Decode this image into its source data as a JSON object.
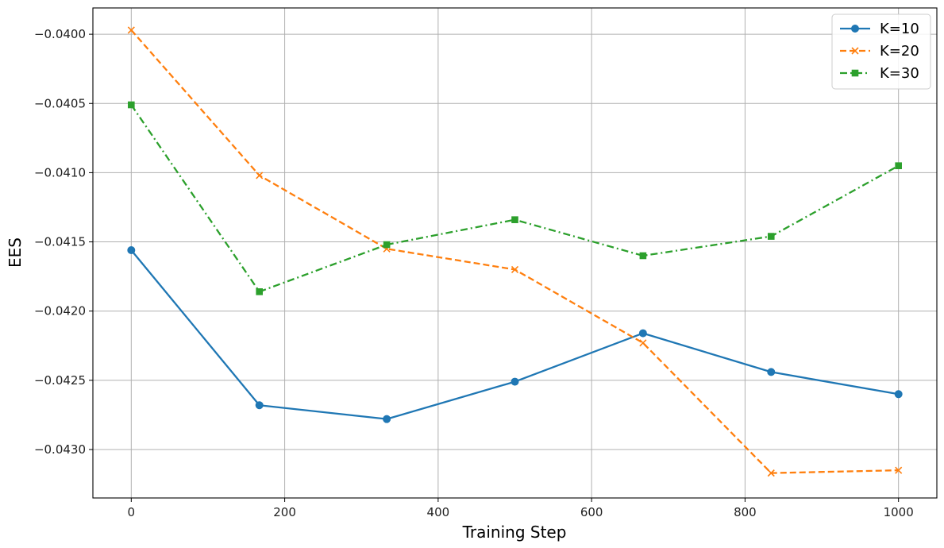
{
  "chart_data": {
    "type": "line",
    "xlabel": "Training Step",
    "ylabel": "EES",
    "xlim": [
      -50,
      1050
    ],
    "ylim": [
      -0.04335,
      -0.03981
    ],
    "xticks": [
      0,
      200,
      400,
      600,
      800,
      1000
    ],
    "xtick_labels": [
      "0",
      "200",
      "400",
      "600",
      "800",
      "1000"
    ],
    "yticks": [
      -0.043,
      -0.0425,
      -0.042,
      -0.0415,
      -0.041,
      -0.0405,
      -0.04
    ],
    "ytick_labels": [
      "−0.0430",
      "−0.0425",
      "−0.0420",
      "−0.0415",
      "−0.0410",
      "−0.0405",
      "−0.0400"
    ],
    "grid": true,
    "legend_position": "top-right",
    "x": [
      0,
      167,
      333,
      500,
      667,
      834,
      1000
    ],
    "series": [
      {
        "name": "K=10",
        "color": "#1f77b4",
        "linestyle": "solid",
        "marker": "circle",
        "values": [
          -0.04156,
          -0.04268,
          -0.04278,
          -0.04251,
          -0.04216,
          -0.04244,
          -0.0426
        ]
      },
      {
        "name": "K=20",
        "color": "#ff7f0e",
        "linestyle": "dashed",
        "marker": "x",
        "values": [
          -0.03997,
          -0.04102,
          -0.04155,
          -0.0417,
          -0.04223,
          -0.04317,
          -0.04315
        ]
      },
      {
        "name": "K=30",
        "color": "#2ca02c",
        "linestyle": "dashdot",
        "marker": "square",
        "values": [
          -0.04051,
          -0.04186,
          -0.04152,
          -0.04134,
          -0.0416,
          -0.04146,
          -0.04095
        ]
      }
    ]
  }
}
